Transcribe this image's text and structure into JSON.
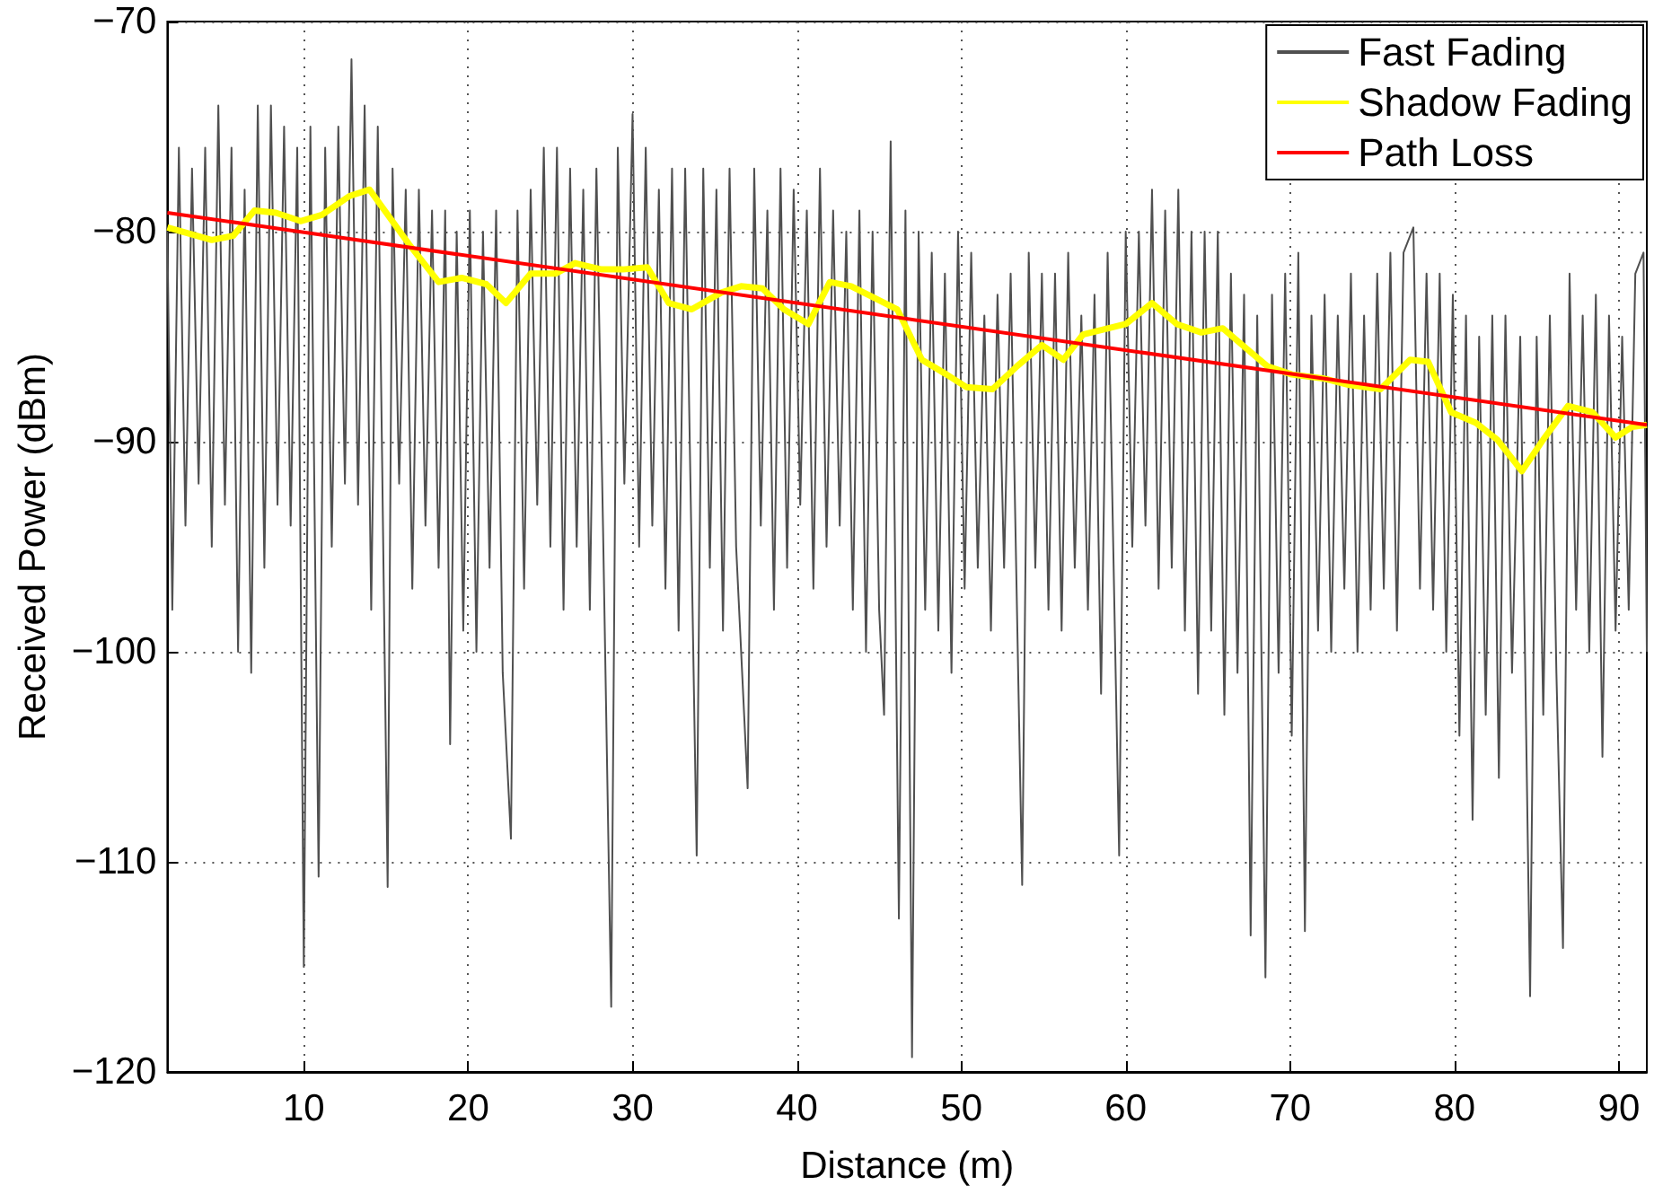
{
  "chart_data": {
    "type": "line",
    "xlabel": "Distance (m)",
    "ylabel": "Received Power (dBm)",
    "xlim": [
      1.7,
      91.7
    ],
    "xticks": [
      10,
      20,
      30,
      40,
      50,
      60,
      70,
      80,
      90
    ],
    "ylim": [
      -120,
      -70
    ],
    "yticks": [
      {
        "value": -120,
        "label": "−120"
      },
      {
        "value": -110,
        "label": "−110"
      },
      {
        "value": -100,
        "label": "−100"
      },
      {
        "value": -90,
        "label": "−90"
      },
      {
        "value": -80,
        "label": "−80"
      },
      {
        "value": -70,
        "label": "−70"
      }
    ],
    "grid": true,
    "legend": "top right",
    "marker": "none",
    "series": [
      {
        "name": "Fast Fading",
        "color": "#505050",
        "x": [
          1.7,
          2.0,
          2.4,
          2.8,
          3.2,
          3.6,
          4.0,
          4.4,
          4.8,
          5.2,
          5.6,
          6.0,
          6.4,
          6.8,
          7.2,
          7.6,
          8.0,
          8.4,
          8.8,
          9.2,
          9.6,
          10.0,
          10.4,
          10.9,
          11.3,
          11.7,
          12.1,
          12.5,
          12.9,
          13.3,
          13.7,
          14.1,
          14.5,
          15.1,
          15.4,
          15.8,
          16.2,
          16.6,
          17.0,
          17.4,
          17.8,
          18.2,
          18.6,
          18.9,
          19.3,
          19.7,
          20.1,
          20.5,
          20.9,
          21.3,
          21.7,
          22.1,
          22.6,
          23.0,
          23.4,
          23.8,
          24.2,
          24.6,
          25.0,
          25.4,
          25.8,
          26.2,
          26.6,
          27.0,
          27.4,
          27.8,
          28.2,
          28.7,
          29.1,
          29.5,
          30.0,
          30.4,
          30.8,
          31.2,
          31.6,
          32.0,
          32.4,
          32.8,
          33.2,
          33.9,
          34.3,
          34.7,
          35.1,
          35.5,
          35.9,
          36.3,
          37.0,
          37.4,
          37.8,
          38.2,
          38.6,
          39.0,
          39.4,
          39.8,
          40.2,
          40.6,
          41.0,
          41.4,
          41.8,
          42.2,
          42.6,
          43.0,
          43.4,
          43.8,
          44.2,
          44.6,
          45.0,
          45.3,
          45.7,
          46.2,
          46.6,
          47.0,
          47.4,
          47.8,
          48.2,
          48.6,
          49.0,
          49.4,
          49.8,
          50.2,
          50.6,
          51.0,
          51.4,
          51.8,
          52.2,
          52.6,
          53.0,
          53.7,
          54.1,
          54.5,
          54.9,
          55.3,
          55.7,
          56.1,
          56.5,
          56.9,
          57.3,
          57.7,
          58.1,
          58.5,
          58.9,
          59.6,
          60.0,
          60.4,
          60.8,
          61.2,
          61.6,
          62.0,
          62.4,
          62.8,
          63.2,
          63.6,
          64.0,
          64.4,
          64.8,
          65.2,
          65.6,
          66.0,
          66.4,
          66.8,
          67.2,
          67.6,
          68.0,
          68.5,
          68.9,
          69.3,
          69.7,
          70.1,
          70.5,
          70.9,
          71.3,
          71.7,
          72.1,
          72.5,
          72.9,
          73.3,
          73.7,
          74.1,
          74.5,
          74.9,
          75.3,
          75.7,
          76.1,
          76.5,
          76.9,
          77.5,
          77.9,
          78.3,
          78.7,
          79.1,
          79.5,
          79.9,
          80.3,
          80.7,
          81.1,
          81.5,
          81.9,
          82.3,
          82.7,
          83.1,
          83.5,
          84.0,
          84.6,
          85.0,
          85.4,
          85.8,
          86.2,
          86.6,
          87.0,
          87.4,
          87.8,
          88.2,
          88.6,
          89.0,
          89.4,
          89.8,
          90.2,
          90.6,
          91.0,
          91.5,
          91.7
        ],
        "values": [
          -80,
          -98,
          -76,
          -94,
          -77,
          -92,
          -76,
          -95,
          -74,
          -93,
          -76,
          -100,
          -78,
          -101,
          -74,
          -96,
          -74,
          -93,
          -75,
          -94,
          -76,
          -115,
          -75,
          -110.7,
          -76,
          -95,
          -75,
          -92,
          -71.8,
          -93,
          -74,
          -98,
          -75,
          -111.2,
          -77,
          -92,
          -78,
          -97,
          -78,
          -94,
          -79,
          -96,
          -79,
          -104.4,
          -80,
          -99,
          -79,
          -100,
          -80,
          -96,
          -79,
          -101,
          -108.9,
          -79,
          -97,
          -78,
          -93,
          -76,
          -95,
          -76,
          -98,
          -77,
          -95,
          -78,
          -98,
          -77,
          -94,
          -116.9,
          -76,
          -92,
          -74.4,
          -95,
          -76,
          -94,
          -78,
          -97,
          -77,
          -99,
          -77,
          -109.7,
          -77,
          -96,
          -78,
          -99,
          -77,
          -95,
          -106.5,
          -77,
          -94,
          -79,
          -98,
          -77,
          -96,
          -78,
          -93,
          -79,
          -97,
          -77,
          -95,
          -79,
          -94,
          -80,
          -98,
          -79,
          -100,
          -80,
          -98,
          -103,
          -75.7,
          -112.7,
          -79,
          -119.3,
          -80,
          -98,
          -81,
          -99,
          -82,
          -101,
          -80,
          -97,
          -81,
          -96,
          -84,
          -99,
          -83,
          -96,
          -82,
          -111.1,
          -81,
          -96,
          -82,
          -98,
          -82,
          -99,
          -81,
          -96,
          -84,
          -98,
          -83,
          -102,
          -81,
          -109.7,
          -80,
          -95,
          -80,
          -94,
          -78,
          -97,
          -79,
          -96,
          -78,
          -99,
          -80,
          -102,
          -80,
          -99,
          -80,
          -103,
          -82,
          -101,
          -83,
          -113.5,
          -84,
          -115.5,
          -83,
          -101,
          -82,
          -104,
          -81,
          -113.3,
          -84,
          -99,
          -83,
          -100,
          -84,
          -97,
          -82,
          -100,
          -84,
          -98,
          -82,
          -97,
          -81,
          -99,
          -81,
          -79.8,
          -97,
          -82,
          -98,
          -82,
          -100,
          -83,
          -104,
          -84,
          -108,
          -85,
          -103,
          -84,
          -106,
          -84,
          -101,
          -85,
          -116.4,
          -85,
          -103,
          -84,
          -101,
          -114.1,
          -82,
          -98,
          -84,
          -100,
          -83,
          -105,
          -84,
          -99,
          -85,
          -98,
          -82,
          -81,
          -100
        ]
      },
      {
        "name": "Shadow Fading",
        "color": "#ffff00",
        "x": [
          1.7,
          4.4,
          5.7,
          7.0,
          8.3,
          9.8,
          11.1,
          12.8,
          14.0,
          16.4,
          18.2,
          19.6,
          21.1,
          22.3,
          23.8,
          25.3,
          26.5,
          28.1,
          29.4,
          30.9,
          32.2,
          33.6,
          35.4,
          36.6,
          37.9,
          39.2,
          40.7,
          42.0,
          43.3,
          46.1,
          47.6,
          49.1,
          50.3,
          51.9,
          53.4,
          54.9,
          56.2,
          57.4,
          60.0,
          61.6,
          63.1,
          64.6,
          65.9,
          67.4,
          68.6,
          70.1,
          72.1,
          73.6,
          75.5,
          77.3,
          78.4,
          79.8,
          81.3,
          82.6,
          84.1,
          85.4,
          86.9,
          88.4,
          89.8,
          90.8,
          91.7
        ],
        "values": [
          -79.8,
          -80.4,
          -80.2,
          -79.0,
          -79.1,
          -79.5,
          -79.2,
          -78.3,
          -78.0,
          -80.6,
          -82.4,
          -82.2,
          -82.5,
          -83.4,
          -82.0,
          -82.0,
          -81.5,
          -81.8,
          -81.8,
          -81.7,
          -83.4,
          -83.7,
          -82.9,
          -82.6,
          -82.7,
          -83.7,
          -84.4,
          -82.4,
          -82.6,
          -83.7,
          -86.1,
          -86.8,
          -87.4,
          -87.5,
          -86.4,
          -85.4,
          -86.1,
          -84.9,
          -84.4,
          -83.4,
          -84.4,
          -84.8,
          -84.6,
          -85.6,
          -86.4,
          -86.8,
          -87.0,
          -87.3,
          -87.5,
          -86.1,
          -86.2,
          -88.6,
          -89.1,
          -89.9,
          -91.4,
          -89.9,
          -88.3,
          -88.6,
          -89.8,
          -89.3,
          -89.2
        ]
      },
      {
        "name": "Path Loss",
        "color": "#ff0000",
        "x": [
          1.7,
          91.7
        ],
        "values": [
          -79.1,
          -89.2
        ]
      }
    ]
  }
}
